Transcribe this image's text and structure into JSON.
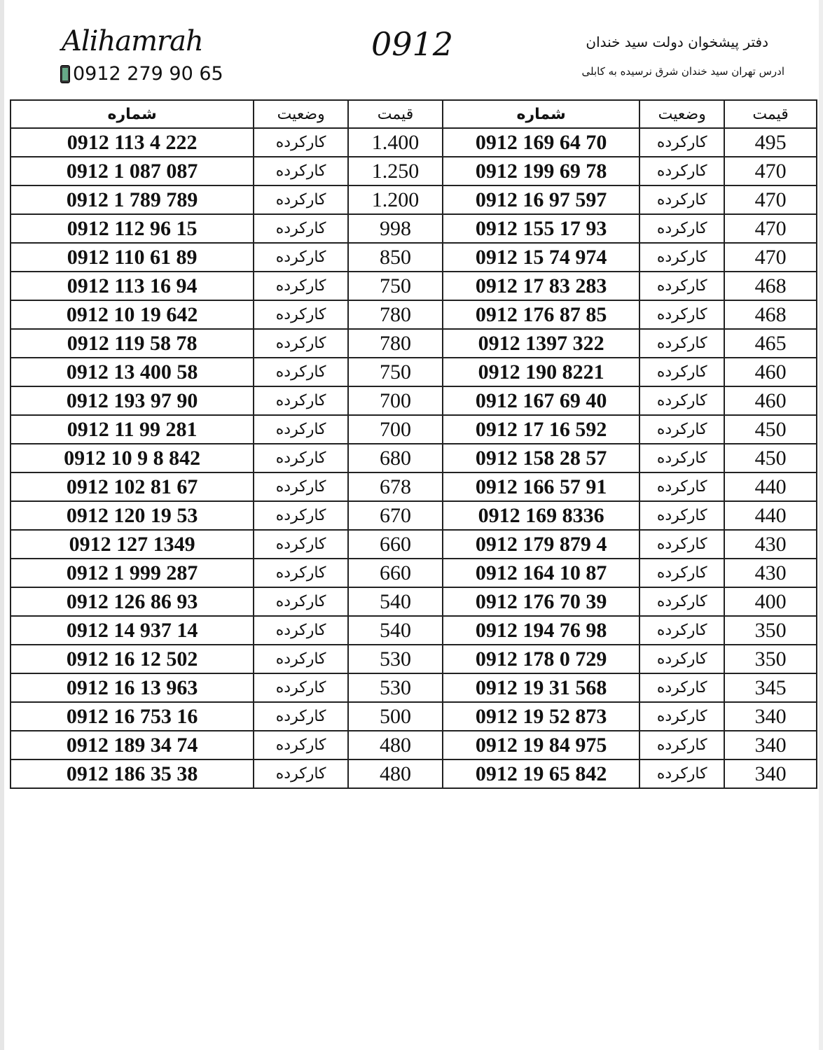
{
  "header": {
    "brand": "Alihamrah",
    "phone": "0912 279 90 65",
    "code": "0912",
    "office": "دفتر پیشخوان دولت سید خندان",
    "address": "ادرس تهران سید خندان شرق نرسیده به کابلی"
  },
  "columns": {
    "number": "شماره",
    "status": "وضعیت",
    "price": "قیمت"
  },
  "rows": [
    {
      "l": {
        "number": "0912 113 4 222",
        "status": "کارکرده",
        "price": "1.400"
      },
      "r": {
        "number": "0912 169 64 70",
        "status": "کارکرده",
        "price": "495"
      }
    },
    {
      "l": {
        "number": "0912 1 087 087",
        "status": "کارکرده",
        "price": "1.250"
      },
      "r": {
        "number": "0912 199 69 78",
        "status": "کارکرده",
        "price": "470"
      }
    },
    {
      "l": {
        "number": "0912 1 789 789",
        "status": "کارکرده",
        "price": "1.200"
      },
      "r": {
        "number": "0912 16 97 597",
        "status": "کارکرده",
        "price": "470"
      }
    },
    {
      "l": {
        "number": "0912 112 96 15",
        "status": "کارکرده",
        "price": "998"
      },
      "r": {
        "number": "0912 155 17 93",
        "status": "کارکرده",
        "price": "470"
      }
    },
    {
      "l": {
        "number": "0912 110 61 89",
        "status": "کارکرده",
        "price": "850"
      },
      "r": {
        "number": "0912 15 74 974",
        "status": "کارکرده",
        "price": "470"
      }
    },
    {
      "l": {
        "number": "0912 113 16 94",
        "status": "کارکرده",
        "price": "750"
      },
      "r": {
        "number": "0912 17 83 283",
        "status": "کارکرده",
        "price": "468"
      }
    },
    {
      "l": {
        "number": "0912 10 19 642",
        "status": "کارکرده",
        "price": "780"
      },
      "r": {
        "number": "0912 176 87 85",
        "status": "کارکرده",
        "price": "468"
      }
    },
    {
      "l": {
        "number": "0912 119 58 78",
        "status": "کارکرده",
        "price": "780"
      },
      "r": {
        "number": "0912 1397 322",
        "status": "کارکرده",
        "price": "465"
      }
    },
    {
      "l": {
        "number": "0912 13 400 58",
        "status": "کارکرده",
        "price": "750"
      },
      "r": {
        "number": "0912 190 8221",
        "status": "کارکرده",
        "price": "460"
      }
    },
    {
      "l": {
        "number": "0912 193 97 90",
        "status": "کارکرده",
        "price": "700"
      },
      "r": {
        "number": "0912 167 69 40",
        "status": "کارکرده",
        "price": "460"
      }
    },
    {
      "l": {
        "number": "0912 11 99 281",
        "status": "کارکرده",
        "price": "700"
      },
      "r": {
        "number": "0912 17 16 592",
        "status": "کارکرده",
        "price": "450"
      }
    },
    {
      "l": {
        "number": "0912 10 9 8 842",
        "status": "کارکرده",
        "price": "680"
      },
      "r": {
        "number": "0912 158 28 57",
        "status": "کارکرده",
        "price": "450"
      }
    },
    {
      "l": {
        "number": "0912 102 81 67",
        "status": "کارکرده",
        "price": "678"
      },
      "r": {
        "number": "0912 166 57 91",
        "status": "کارکرده",
        "price": "440"
      }
    },
    {
      "l": {
        "number": "0912 120 19 53",
        "status": "کارکرده",
        "price": "670"
      },
      "r": {
        "number": "0912 169 8336",
        "status": "کارکرده",
        "price": "440"
      }
    },
    {
      "l": {
        "number": "0912 127 1349",
        "status": "کارکرده",
        "price": "660"
      },
      "r": {
        "number": "0912 179 879 4",
        "status": "کارکرده",
        "price": "430"
      }
    },
    {
      "l": {
        "number": "0912 1 999 287",
        "status": "کارکرده",
        "price": "660"
      },
      "r": {
        "number": "0912 164 10 87",
        "status": "کارکرده",
        "price": "430"
      }
    },
    {
      "l": {
        "number": "0912 126 86 93",
        "status": "کارکرده",
        "price": "540"
      },
      "r": {
        "number": "0912 176 70 39",
        "status": "کارکرده",
        "price": "400"
      }
    },
    {
      "l": {
        "number": "0912 14 937 14",
        "status": "کارکرده",
        "price": "540"
      },
      "r": {
        "number": "0912 194 76 98",
        "status": "کارکرده",
        "price": "350"
      }
    },
    {
      "l": {
        "number": "0912 16 12 502",
        "status": "کارکرده",
        "price": "530"
      },
      "r": {
        "number": "0912 178 0 729",
        "status": "کارکرده",
        "price": "350"
      }
    },
    {
      "l": {
        "number": "0912 16 13 963",
        "status": "کارکرده",
        "price": "530"
      },
      "r": {
        "number": "0912 19 31 568",
        "status": "کارکرده",
        "price": "345"
      }
    },
    {
      "l": {
        "number": "0912 16 753 16",
        "status": "کارکرده",
        "price": "500"
      },
      "r": {
        "number": "0912 19 52 873",
        "status": "کارکرده",
        "price": "340"
      }
    },
    {
      "l": {
        "number": "0912 189 34 74",
        "status": "کارکرده",
        "price": "480"
      },
      "r": {
        "number": "0912 19 84 975",
        "status": "کارکرده",
        "price": "340"
      }
    },
    {
      "l": {
        "number": "0912 186 35 38",
        "status": "کارکرده",
        "price": "480"
      },
      "r": {
        "number": "0912 19 65 842",
        "status": "کارکرده",
        "price": "340"
      }
    }
  ]
}
